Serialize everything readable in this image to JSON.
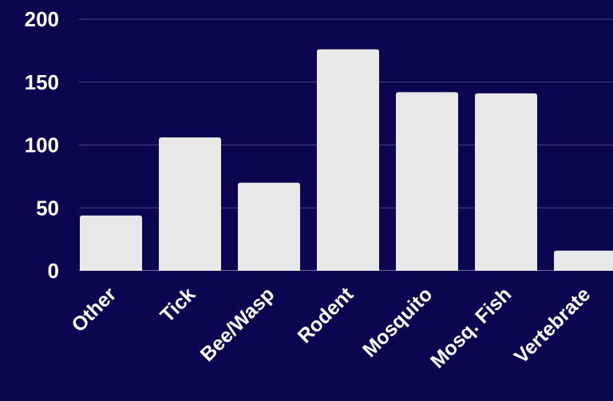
{
  "chart_data": {
    "type": "bar",
    "title": "",
    "xlabel": "",
    "ylabel": "",
    "categories": [
      "Other",
      "Tick",
      "Bee/Wasp",
      "Rodent",
      "Mosquito",
      "Mosq. Fish",
      "Vertebrate"
    ],
    "values": [
      44,
      106,
      70,
      176,
      142,
      141,
      16
    ],
    "ylim": [
      0,
      200
    ],
    "yticks": [
      "0",
      "50",
      "100",
      "150",
      "200"
    ],
    "ytick_values": [
      0,
      50,
      100,
      150,
      200
    ],
    "grid": true,
    "legend": "none"
  },
  "colors": {
    "background": "#0b0650",
    "bar": "#e8e8e8",
    "grid": "#3d3a7a",
    "text": "#ffffff"
  }
}
